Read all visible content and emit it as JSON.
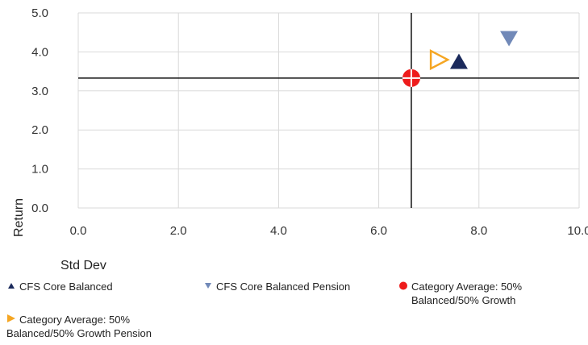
{
  "chart_data": {
    "type": "scatter",
    "xlabel": "Std Dev",
    "ylabel": "Return",
    "xlim": [
      0,
      10
    ],
    "ylim": [
      0,
      5
    ],
    "x_ticks": [
      "0.0",
      "2.0",
      "4.0",
      "6.0",
      "8.0",
      "10.0"
    ],
    "y_ticks": [
      "0.0",
      "1.0",
      "2.0",
      "3.0",
      "4.0",
      "5.0"
    ],
    "grid": true,
    "reference_lines": {
      "x": 6.65,
      "y": 3.33
    },
    "series": [
      {
        "name": "CFS Core Balanced",
        "marker": "triangle-up",
        "color": "#1b2a5c",
        "x": 7.6,
        "y": 3.75
      },
      {
        "name": "CFS Core Balanced Pension",
        "marker": "triangle-down",
        "color": "#7189b8",
        "x": 8.6,
        "y": 4.35
      },
      {
        "name": "Category Average: 50% Balanced/50% Growth",
        "marker": "circle-cross",
        "color": "#ee1c1c",
        "x": 6.65,
        "y": 3.33
      },
      {
        "name": "Category Average: 50% Balanced/50% Growth Pension",
        "marker": "triangle-right-open",
        "color": "#f5a623",
        "x": 7.2,
        "y": 3.8
      }
    ],
    "legend_position": "bottom"
  },
  "legend": {
    "item1": {
      "line1": "CFS Core Balanced",
      "line2": ""
    },
    "item2": {
      "line1": "CFS Core Balanced Pension",
      "line2": ""
    },
    "item3": {
      "line1": "Category Average: 50%",
      "line2": "Balanced/50% Growth"
    },
    "item4": {
      "line1": "Category Average: 50%",
      "line2": "Balanced/50% Growth Pension"
    }
  }
}
